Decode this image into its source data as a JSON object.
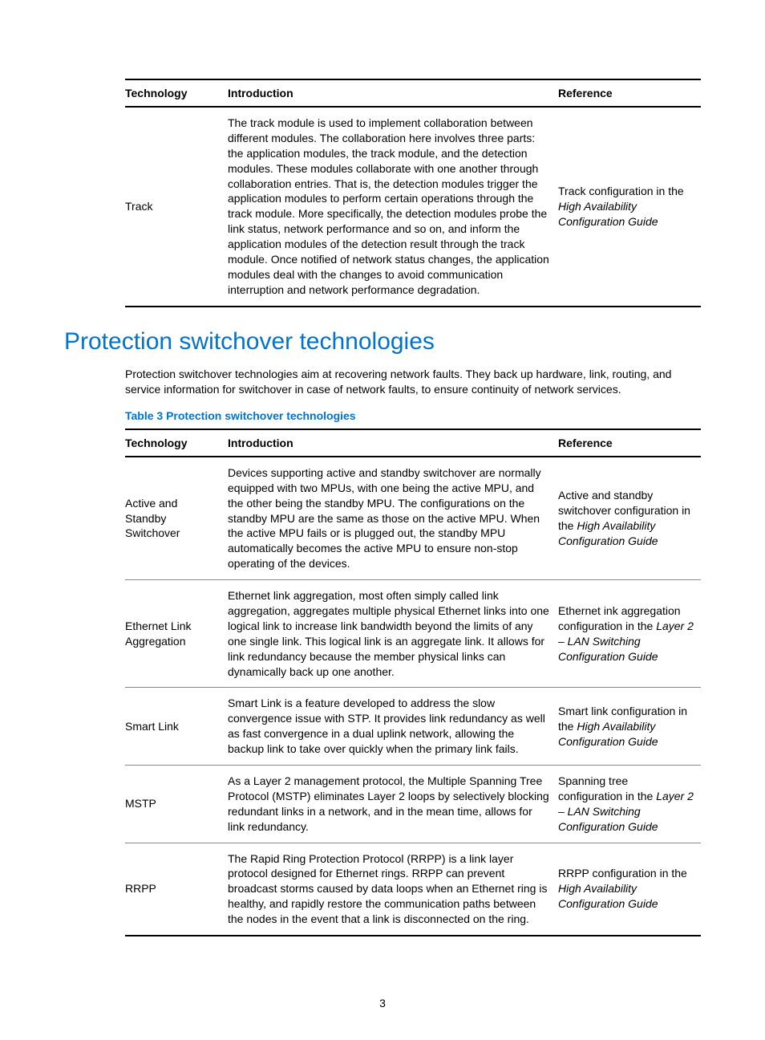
{
  "colors": {
    "text": "#000000",
    "accent": "#0073cf",
    "rule_heavy": "#000000",
    "rule_light": "#888888",
    "background": "#ffffff"
  },
  "typography": {
    "heading_fontsize": 30,
    "body_fontsize": 14,
    "table_fontsize": 14,
    "font_family": "Arial, Helvetica, sans-serif"
  },
  "page_number": "3",
  "table1": {
    "headers": {
      "tech": "Technology",
      "intro": "Introduction",
      "ref": "Reference"
    },
    "rows": [
      {
        "tech": "Track",
        "intro": "The track module is used to implement collaboration between different modules. The collaboration here involves three parts: the application modules, the track module, and the detection modules. These modules collaborate with one another through collaboration entries. That is, the detection modules trigger the application modules to perform certain operations through the track module. More specifically, the detection modules probe the link status, network performance and so on, and inform the application modules of the detection result through the track module. Once notified of network status changes, the application modules deal with the changes to avoid communication interruption and network performance degradation.",
        "ref_pre": "Track configuration in the ",
        "ref_italic": "High Availability Configuration Guide",
        "ref_post": ""
      }
    ]
  },
  "heading": "Protection switchover technologies",
  "intro_paragraph": "Protection switchover technologies aim at recovering network faults. They back up hardware, link, routing, and service information for switchover in case of network faults, to ensure continuity of network services.",
  "table2_caption": "Table 3 Protection switchover technologies",
  "table2": {
    "headers": {
      "tech": "Technology",
      "intro": "Introduction",
      "ref": "Reference"
    },
    "rows": [
      {
        "tech": "Active and Standby Switchover",
        "intro": "Devices supporting active and standby switchover are normally equipped with two MPUs, with one being the active MPU, and the other being the standby MPU. The configurations on the standby MPU are the same as those on the active MPU. When the active MPU fails or is plugged out, the standby MPU automatically becomes the active MPU to ensure non-stop operating of the devices.",
        "ref_pre": "Active and standby switchover configuration in the ",
        "ref_italic": "High Availability Configuration Guide",
        "ref_post": ""
      },
      {
        "tech": "Ethernet Link Aggregation",
        "intro": "Ethernet link aggregation, most often simply called link aggregation, aggregates multiple physical Ethernet links into one logical link to increase link bandwidth beyond the limits of any one single link. This logical link is an aggregate link. It allows for link redundancy because the member physical links can dynamically back up one another.",
        "ref_pre": "Ethernet ink aggregation configuration in the ",
        "ref_italic": "Layer 2 – LAN Switching Configuration Guide",
        "ref_post": ""
      },
      {
        "tech": "Smart Link",
        "intro": "Smart Link is a feature developed to address the slow convergence issue with STP. It provides link redundancy as well as fast convergence in a dual uplink network, allowing the backup link to take over quickly when the primary link fails.",
        "ref_pre": "Smart link configuration in the ",
        "ref_italic": "High Availability Configuration Guide",
        "ref_post": ""
      },
      {
        "tech": "MSTP",
        "intro": "As a Layer 2 management protocol, the Multiple Spanning Tree Protocol (MSTP) eliminates Layer 2 loops by selectively blocking redundant links in a network, and in the mean time, allows for link redundancy.",
        "ref_pre": "Spanning tree configuration in the ",
        "ref_italic": "Layer 2 – LAN Switching Configuration Guide",
        "ref_post": ""
      },
      {
        "tech": "RRPP",
        "intro": "The Rapid Ring Protection Protocol (RRPP) is a link layer protocol designed for Ethernet rings. RRPP can prevent broadcast storms caused by data loops when an Ethernet ring is healthy, and rapidly restore the communication paths between the nodes in the event that a link is disconnected on the ring.",
        "ref_pre": "RRPP configuration in the ",
        "ref_italic": "High Availability Configuration Guide",
        "ref_post": ""
      }
    ]
  }
}
